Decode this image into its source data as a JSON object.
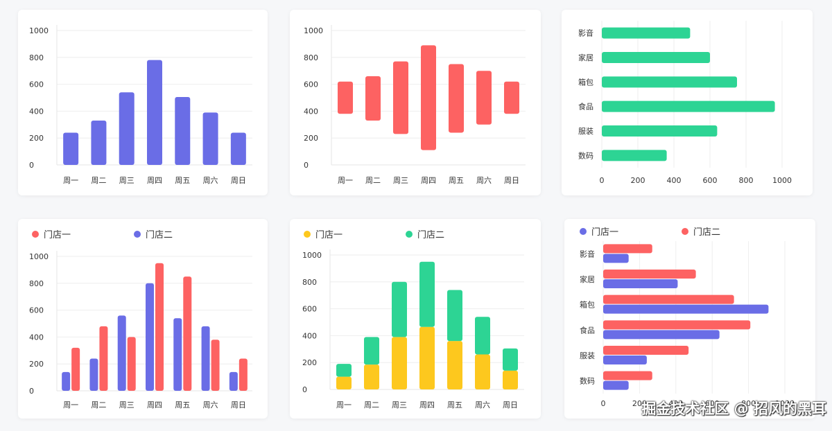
{
  "colors": {
    "blue": "#6a6de6",
    "red": "#fd6262",
    "green": "#2dd494",
    "yellow": "#fdc81e",
    "grid": "#eeeeee",
    "axis": "#e6e6e6"
  },
  "watermark": "掘金技术社区 @ 招风的黑耳",
  "chart_data": [
    {
      "type": "bar",
      "categories": [
        "周一",
        "周二",
        "周三",
        "周四",
        "周五",
        "周六",
        "周日"
      ],
      "series": [
        {
          "values": [
            240,
            330,
            540,
            780,
            505,
            390,
            240
          ]
        }
      ],
      "ylim": [
        0,
        1000
      ],
      "yticks": [
        0,
        200,
        400,
        600,
        800,
        1000
      ],
      "grid": true
    },
    {
      "type": "bar",
      "subtype": "floating-range",
      "categories": [
        "周一",
        "周二",
        "周三",
        "周四",
        "周五",
        "周六",
        "周日"
      ],
      "ranges": [
        [
          380,
          620
        ],
        [
          330,
          660
        ],
        [
          230,
          770
        ],
        [
          110,
          890
        ],
        [
          240,
          750
        ],
        [
          300,
          700
        ],
        [
          380,
          620
        ]
      ],
      "ylim": [
        0,
        1000
      ],
      "yticks": [
        0,
        200,
        400,
        600,
        800,
        1000
      ],
      "grid": true
    },
    {
      "type": "bar",
      "orientation": "horizontal",
      "categories": [
        "影音",
        "家居",
        "箱包",
        "食品",
        "服装",
        "数码"
      ],
      "series": [
        {
          "values": [
            490,
            600,
            750,
            960,
            640,
            360
          ]
        }
      ],
      "xlim": [
        0,
        1000
      ],
      "xticks": [
        0,
        200,
        400,
        600,
        800,
        1000
      ],
      "grid": true
    },
    {
      "type": "bar",
      "subtype": "grouped",
      "categories": [
        "周一",
        "周二",
        "周三",
        "周四",
        "周五",
        "周六",
        "周日"
      ],
      "series": [
        {
          "name": "门店二",
          "values": [
            140,
            240,
            560,
            800,
            540,
            480,
            140
          ]
        },
        {
          "name": "门店一",
          "values": [
            320,
            480,
            400,
            950,
            850,
            380,
            240
          ]
        }
      ],
      "legend": [
        "门店一",
        "门店二"
      ],
      "legend_position": "top-left",
      "ylim": [
        0,
        1000
      ],
      "yticks": [
        0,
        200,
        400,
        600,
        800,
        1000
      ],
      "grid": true
    },
    {
      "type": "bar",
      "subtype": "stacked",
      "categories": [
        "周一",
        "周二",
        "周三",
        "周四",
        "周五",
        "周六",
        "周日"
      ],
      "series": [
        {
          "name": "门店一",
          "values": [
            95,
            185,
            390,
            465,
            360,
            260,
            140
          ]
        },
        {
          "name": "门店二",
          "values": [
            95,
            205,
            410,
            485,
            380,
            280,
            165
          ]
        }
      ],
      "legend": [
        "门店一",
        "门店二"
      ],
      "legend_position": "top-left",
      "ylim": [
        0,
        1000
      ],
      "yticks": [
        0,
        200,
        400,
        600,
        800,
        1000
      ],
      "grid": true
    },
    {
      "type": "bar",
      "subtype": "grouped",
      "orientation": "horizontal",
      "categories": [
        "影音",
        "家居",
        "箱包",
        "食品",
        "服装",
        "数码"
      ],
      "series": [
        {
          "name": "门店二",
          "values": [
            270,
            510,
            720,
            810,
            470,
            270
          ]
        },
        {
          "name": "门店一",
          "values": [
            140,
            410,
            910,
            640,
            240,
            140
          ]
        }
      ],
      "legend": [
        "门店一",
        "门店二"
      ],
      "legend_position": "top-left",
      "xlim": [
        0,
        1000
      ],
      "xticks": [
        0,
        200,
        400,
        600,
        800,
        1000
      ],
      "grid": true
    }
  ]
}
